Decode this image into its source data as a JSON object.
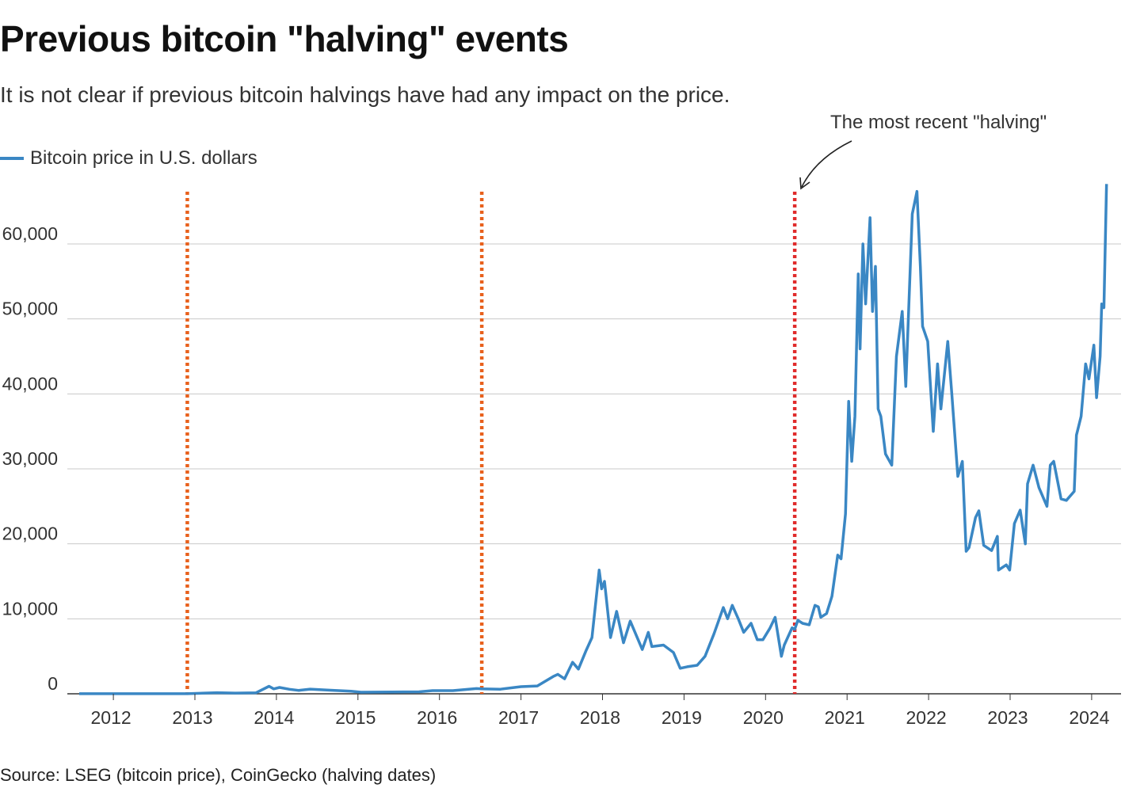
{
  "title": "Previous bitcoin \"halving\" events",
  "subtitle": "It is not clear if previous bitcoin halvings have had any impact on the price.",
  "source": "Source: LSEG (bitcoin price), CoinGecko (halving dates)",
  "chart_data": {
    "type": "line",
    "title": "Previous bitcoin \"halving\" events",
    "xlabel": "",
    "ylabel": "",
    "ylim": [
      0,
      67000
    ],
    "xlim": [
      "2011-08-01",
      "2024-03-15"
    ],
    "grid": true,
    "legend_placement": "top-left",
    "y_ticks": [
      {
        "value": 0,
        "label": "0"
      },
      {
        "value": 10000,
        "label": "10,000"
      },
      {
        "value": 20000,
        "label": "20,000"
      },
      {
        "value": 30000,
        "label": "30,000"
      },
      {
        "value": 40000,
        "label": "40,000"
      },
      {
        "value": 50000,
        "label": "50,000"
      },
      {
        "value": 60000,
        "label": "60,000"
      }
    ],
    "x_ticks": [
      "2012",
      "2013",
      "2014",
      "2015",
      "2016",
      "2017",
      "2018",
      "2019",
      "2020",
      "2021",
      "2022",
      "2023",
      "2024"
    ],
    "colors": {
      "line": "#3a87c4",
      "halving_early": "#e8601c",
      "halving_recent": "#e02b2b",
      "grid": "#c8c8c8"
    },
    "halvings": [
      "2012-11-28",
      "2016-07-09",
      "2020-05-11"
    ],
    "annotation": "The most recent \"halving\"",
    "series": [
      {
        "name": "Bitcoin price in U.S. dollars",
        "points": [
          [
            "2011-08-01",
            10
          ],
          [
            "2012-01-01",
            6
          ],
          [
            "2012-06-01",
            6
          ],
          [
            "2012-11-28",
            12
          ],
          [
            "2013-04-10",
            150
          ],
          [
            "2013-07-01",
            90
          ],
          [
            "2013-10-01",
            130
          ],
          [
            "2013-11-29",
            1000
          ],
          [
            "2013-12-20",
            650
          ],
          [
            "2014-01-15",
            850
          ],
          [
            "2014-03-01",
            600
          ],
          [
            "2014-04-10",
            450
          ],
          [
            "2014-06-01",
            620
          ],
          [
            "2014-09-01",
            480
          ],
          [
            "2014-12-01",
            350
          ],
          [
            "2015-01-15",
            210
          ],
          [
            "2015-06-01",
            240
          ],
          [
            "2015-10-01",
            260
          ],
          [
            "2015-12-01",
            420
          ],
          [
            "2016-03-01",
            420
          ],
          [
            "2016-06-15",
            700
          ],
          [
            "2016-07-09",
            650
          ],
          [
            "2016-10-01",
            610
          ],
          [
            "2017-01-01",
            950
          ],
          [
            "2017-03-15",
            1050
          ],
          [
            "2017-05-25",
            2300
          ],
          [
            "2017-06-15",
            2600
          ],
          [
            "2017-07-15",
            2000
          ],
          [
            "2017-08-20",
            4200
          ],
          [
            "2017-09-15",
            3300
          ],
          [
            "2017-10-20",
            5800
          ],
          [
            "2017-11-15",
            7500
          ],
          [
            "2017-12-17",
            16500
          ],
          [
            "2017-12-28",
            14000
          ],
          [
            "2018-01-10",
            15000
          ],
          [
            "2018-02-06",
            7500
          ],
          [
            "2018-03-05",
            11000
          ],
          [
            "2018-04-05",
            6800
          ],
          [
            "2018-05-05",
            9700
          ],
          [
            "2018-06-28",
            5900
          ],
          [
            "2018-07-25",
            8200
          ],
          [
            "2018-08-10",
            6300
          ],
          [
            "2018-10-01",
            6500
          ],
          [
            "2018-11-15",
            5500
          ],
          [
            "2018-12-15",
            3400
          ],
          [
            "2019-01-15",
            3600
          ],
          [
            "2019-03-01",
            3800
          ],
          [
            "2019-04-05",
            5000
          ],
          [
            "2019-05-15",
            8000
          ],
          [
            "2019-06-26",
            11500
          ],
          [
            "2019-07-15",
            10000
          ],
          [
            "2019-08-05",
            11800
          ],
          [
            "2019-09-01",
            10000
          ],
          [
            "2019-09-25",
            8200
          ],
          [
            "2019-10-28",
            9400
          ],
          [
            "2019-11-25",
            7200
          ],
          [
            "2019-12-20",
            7200
          ],
          [
            "2020-01-20",
            8700
          ],
          [
            "2020-02-13",
            10200
          ],
          [
            "2020-03-12",
            5000
          ],
          [
            "2020-03-25",
            6500
          ],
          [
            "2020-04-29",
            8800
          ],
          [
            "2020-05-11",
            8600
          ],
          [
            "2020-05-25",
            9800
          ],
          [
            "2020-06-15",
            9400
          ],
          [
            "2020-07-15",
            9200
          ],
          [
            "2020-08-10",
            11800
          ],
          [
            "2020-08-25",
            11600
          ],
          [
            "2020-09-05",
            10200
          ],
          [
            "2020-10-01",
            10700
          ],
          [
            "2020-10-25",
            13000
          ],
          [
            "2020-11-20",
            18500
          ],
          [
            "2020-12-05",
            18000
          ],
          [
            "2020-12-25",
            24000
          ],
          [
            "2021-01-08",
            39000
          ],
          [
            "2021-01-22",
            31000
          ],
          [
            "2021-02-05",
            37000
          ],
          [
            "2021-02-20",
            56000
          ],
          [
            "2021-02-28",
            46000
          ],
          [
            "2021-03-13",
            60000
          ],
          [
            "2021-03-25",
            52000
          ],
          [
            "2021-04-14",
            63500
          ],
          [
            "2021-04-25",
            51000
          ],
          [
            "2021-05-08",
            57000
          ],
          [
            "2021-05-20",
            38000
          ],
          [
            "2021-06-01",
            37000
          ],
          [
            "2021-06-22",
            32000
          ],
          [
            "2021-07-20",
            30500
          ],
          [
            "2021-08-10",
            45000
          ],
          [
            "2021-09-05",
            51000
          ],
          [
            "2021-09-21",
            41000
          ],
          [
            "2021-10-20",
            64000
          ],
          [
            "2021-11-10",
            67000
          ],
          [
            "2021-11-25",
            57000
          ],
          [
            "2021-12-05",
            49000
          ],
          [
            "2021-12-28",
            47000
          ],
          [
            "2022-01-22",
            35000
          ],
          [
            "2022-02-10",
            44000
          ],
          [
            "2022-02-25",
            38000
          ],
          [
            "2022-03-28",
            47000
          ],
          [
            "2022-04-15",
            40000
          ],
          [
            "2022-05-12",
            29000
          ],
          [
            "2022-06-01",
            31000
          ],
          [
            "2022-06-18",
            19000
          ],
          [
            "2022-07-01",
            19500
          ],
          [
            "2022-07-30",
            23500
          ],
          [
            "2022-08-14",
            24400
          ],
          [
            "2022-09-05",
            19800
          ],
          [
            "2022-10-10",
            19100
          ],
          [
            "2022-11-05",
            21000
          ],
          [
            "2022-11-10",
            16500
          ],
          [
            "2022-12-15",
            17200
          ],
          [
            "2022-12-30",
            16500
          ],
          [
            "2023-01-20",
            22700
          ],
          [
            "2023-02-15",
            24500
          ],
          [
            "2023-03-10",
            20000
          ],
          [
            "2023-03-20",
            28000
          ],
          [
            "2023-04-14",
            30500
          ],
          [
            "2023-05-10",
            27500
          ],
          [
            "2023-06-15",
            25000
          ],
          [
            "2023-06-30",
            30500
          ],
          [
            "2023-07-15",
            31000
          ],
          [
            "2023-08-17",
            26000
          ],
          [
            "2023-09-10",
            25800
          ],
          [
            "2023-10-15",
            27000
          ],
          [
            "2023-10-25",
            34500
          ],
          [
            "2023-11-15",
            37000
          ],
          [
            "2023-12-05",
            44000
          ],
          [
            "2023-12-20",
            42000
          ],
          [
            "2024-01-11",
            46500
          ],
          [
            "2024-01-23",
            39500
          ],
          [
            "2024-02-08",
            45000
          ],
          [
            "2024-02-15",
            52000
          ],
          [
            "2024-02-25",
            51500
          ],
          [
            "2024-03-08",
            68000
          ]
        ]
      }
    ]
  }
}
